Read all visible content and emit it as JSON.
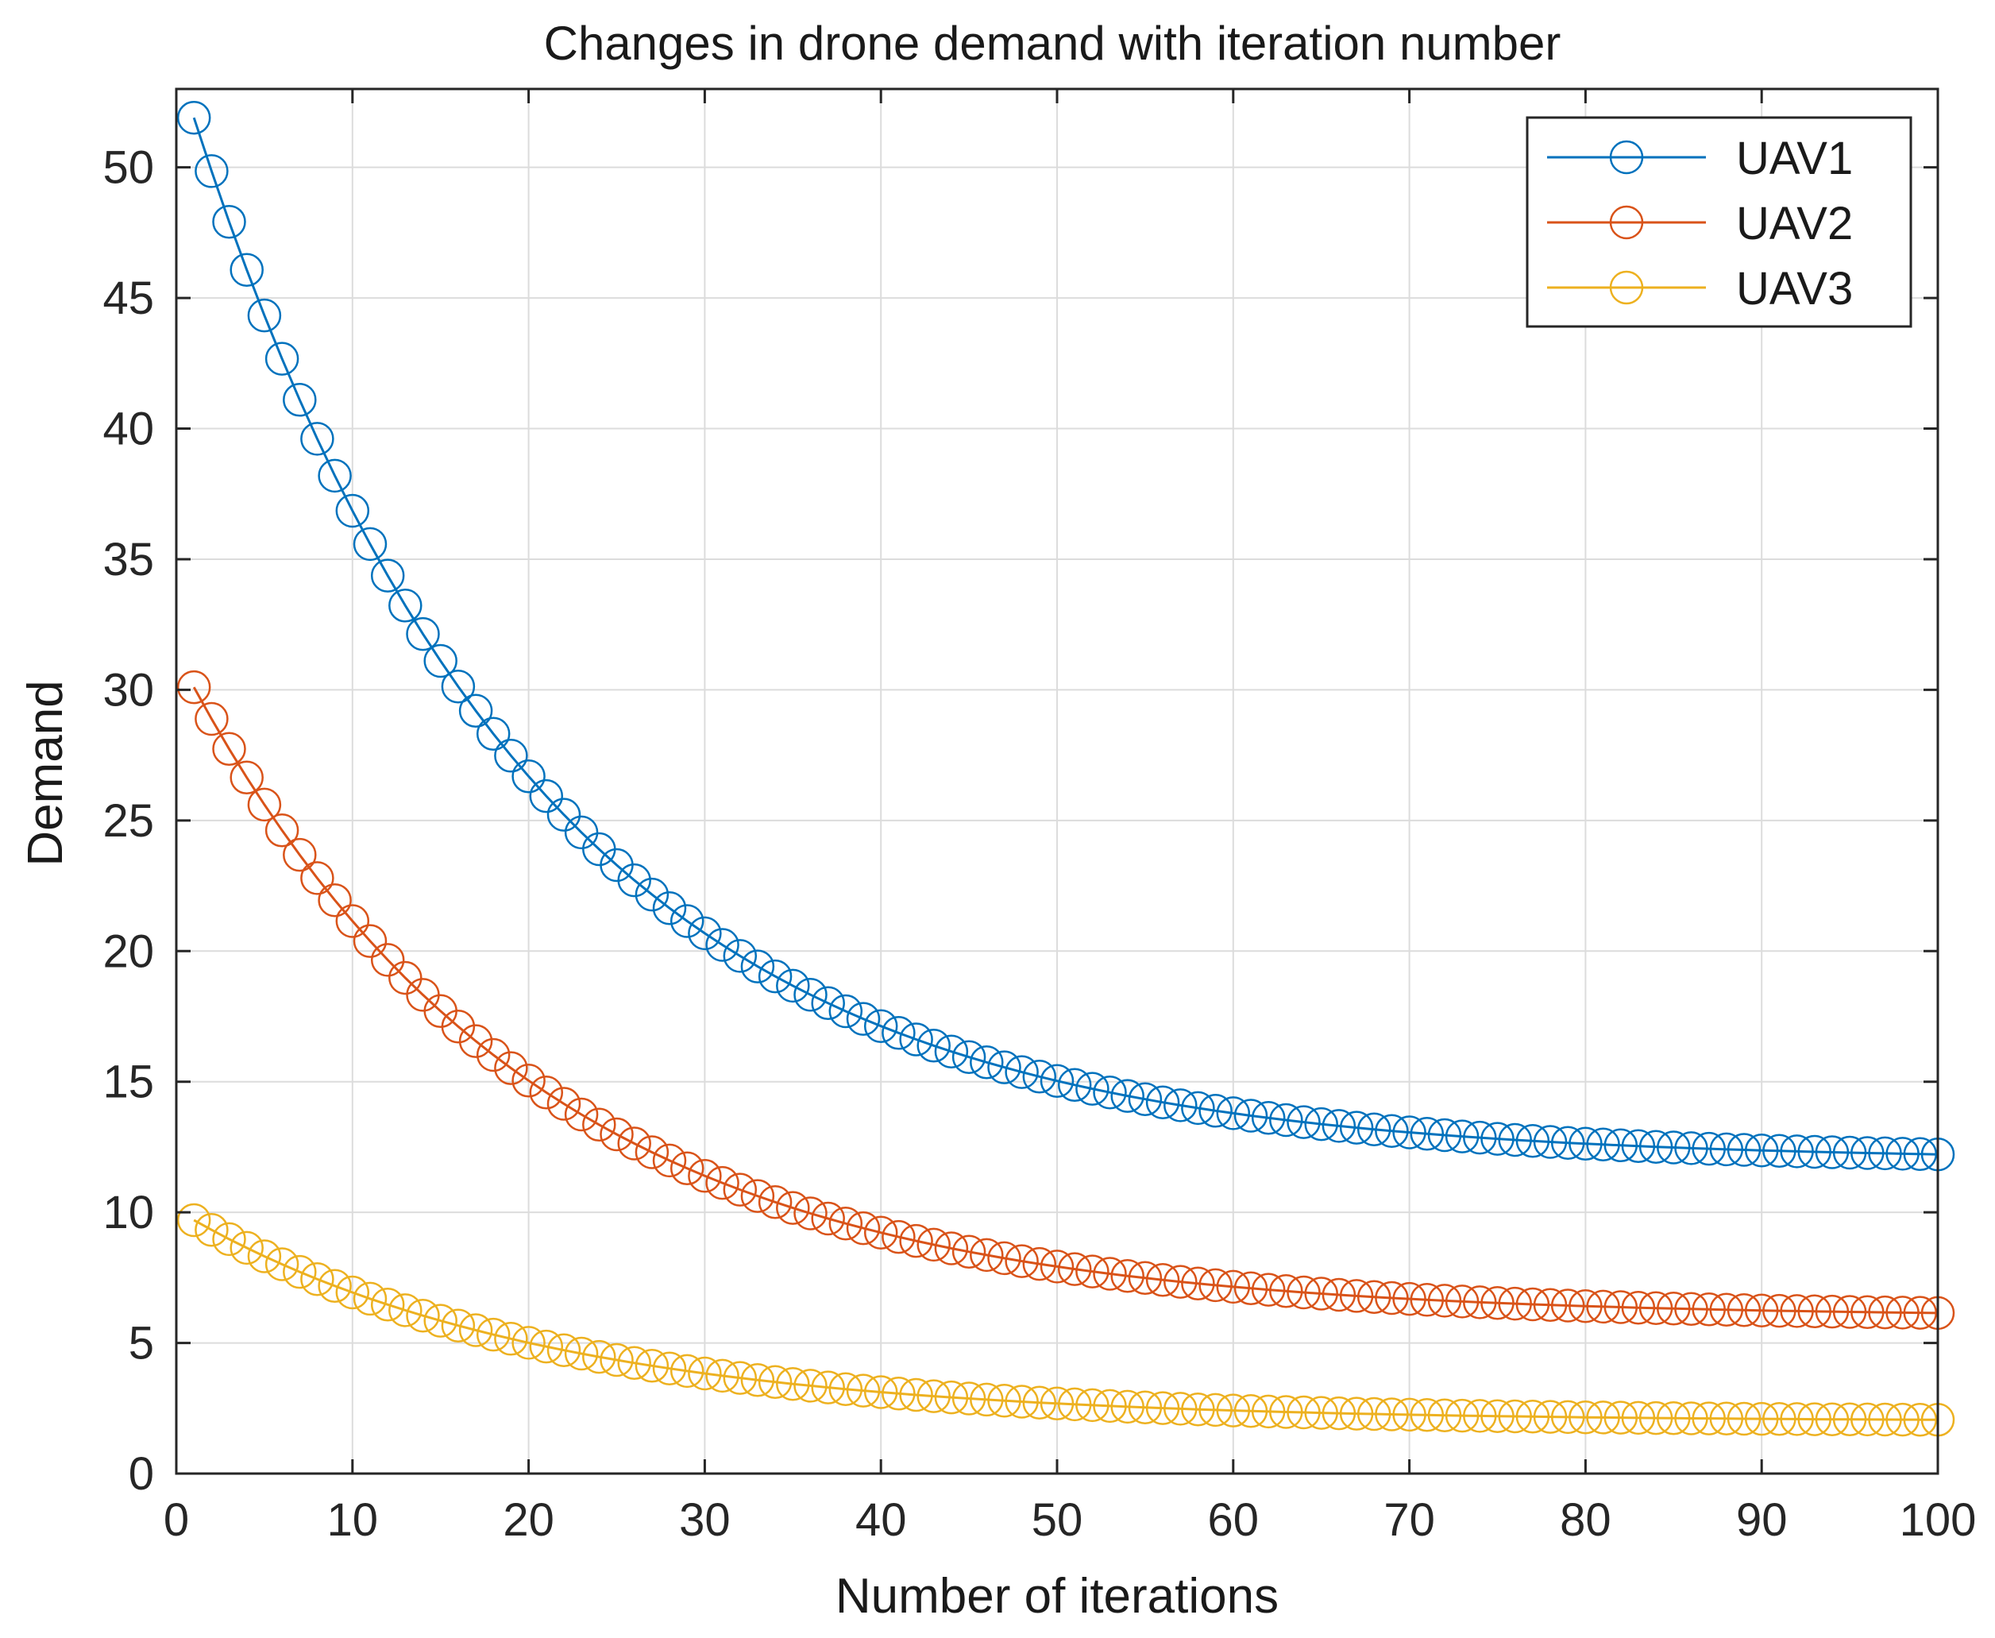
{
  "chart_data": {
    "type": "line",
    "title": "Changes in drone demand with iteration number",
    "xlabel": "Number of iterations",
    "ylabel": "Demand",
    "xlim": [
      0,
      100
    ],
    "ylim": [
      0,
      53
    ],
    "xticks": [
      0,
      10,
      20,
      30,
      40,
      50,
      60,
      70,
      80,
      90,
      100
    ],
    "yticks": [
      0,
      5,
      10,
      15,
      20,
      25,
      30,
      35,
      40,
      45,
      50
    ],
    "grid": true,
    "legend_position": "top-right",
    "marker": "circle",
    "x_start": 1,
    "x_end": 100,
    "series": [
      {
        "name": "UAV1",
        "color": "#0072BD",
        "initial": 51.9,
        "asymptote": 12.0,
        "decay_rate": 0.0526
      },
      {
        "name": "UAV2",
        "color": "#D95319",
        "initial": 30.1,
        "asymptote": 6.0,
        "decay_rate": 0.0516
      },
      {
        "name": "UAV3",
        "color": "#EDB120",
        "initial": 9.7,
        "asymptote": 2.0,
        "decay_rate": 0.0495
      }
    ]
  }
}
